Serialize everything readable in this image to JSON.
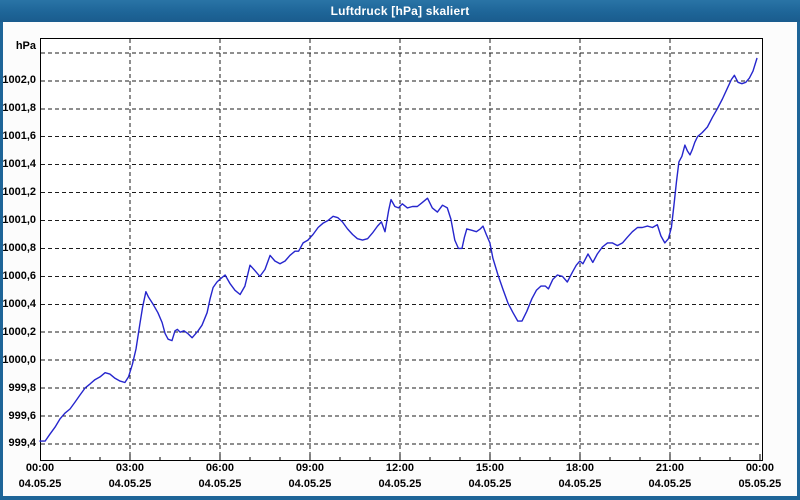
{
  "window": {
    "title": "Luftdruck [hPa] skaliert"
  },
  "colors": {
    "titlebar": "#1e6598",
    "window_border": "#1e6598",
    "plot_background": "#ffffff",
    "grid": "#1c1c1c",
    "line": "#2626cd",
    "text": "#000000",
    "title_text": "#ffffff"
  },
  "chart_data": {
    "type": "line",
    "title": "Luftdruck [hPa] skaliert",
    "y_unit": "hPa",
    "xlabel": "",
    "ylabel": "hPa",
    "grid": "dashed",
    "legend": "none",
    "ylim": [
      999.285,
      1002.307
    ],
    "xlim_hours": [
      0,
      24.07
    ],
    "y_gridlines": [
      999.4,
      999.6,
      999.8,
      1000.0,
      1000.2,
      1000.4,
      1000.6,
      1000.8,
      1001.0,
      1001.2,
      1001.4,
      1001.6,
      1001.8,
      1002.0,
      1002.2
    ],
    "y_ticks": [
      {
        "value": 1002.0,
        "label": "1002,0"
      },
      {
        "value": 1001.8,
        "label": "1001,8"
      },
      {
        "value": 1001.6,
        "label": "1001,6"
      },
      {
        "value": 1001.4,
        "label": "1001,4"
      },
      {
        "value": 1001.2,
        "label": "1001,2"
      },
      {
        "value": 1001.0,
        "label": "1001,0"
      },
      {
        "value": 1000.8,
        "label": "1000,8"
      },
      {
        "value": 1000.6,
        "label": "1000,6"
      },
      {
        "value": 1000.4,
        "label": "1000,4"
      },
      {
        "value": 1000.2,
        "label": "1000,2"
      },
      {
        "value": 1000.0,
        "label": "1000,0"
      },
      {
        "value": 999.8,
        "label": "999,8"
      },
      {
        "value": 999.6,
        "label": "999,6"
      },
      {
        "value": 999.4,
        "label": "999,4"
      }
    ],
    "x_gridline_hours": [
      3,
      6,
      9,
      12,
      15,
      18,
      21
    ],
    "x_ticks": [
      {
        "hour": 0,
        "time": "00:00",
        "date": "04.05.25"
      },
      {
        "hour": 3,
        "time": "03:00",
        "date": "04.05.25"
      },
      {
        "hour": 6,
        "time": "06:00",
        "date": "04.05.25"
      },
      {
        "hour": 9,
        "time": "09:00",
        "date": "04.05.25"
      },
      {
        "hour": 12,
        "time": "12:00",
        "date": "04.05.25"
      },
      {
        "hour": 15,
        "time": "15:00",
        "date": "04.05.25"
      },
      {
        "hour": 18,
        "time": "18:00",
        "date": "04.05.25"
      },
      {
        "hour": 21,
        "time": "21:00",
        "date": "04.05.25"
      },
      {
        "hour": 24,
        "time": "00:00",
        "date": "05.05.25"
      }
    ],
    "series": [
      {
        "name": "Luftdruck",
        "unit": "hPa",
        "points": [
          [
            0,
            999.42
          ],
          [
            0.17,
            999.42
          ],
          [
            0.33,
            999.47
          ],
          [
            0.5,
            999.52
          ],
          [
            0.67,
            999.58
          ],
          [
            0.83,
            999.62
          ],
          [
            1,
            999.65
          ],
          [
            1.17,
            999.7
          ],
          [
            1.33,
            999.75
          ],
          [
            1.5,
            999.8
          ],
          [
            1.67,
            999.83
          ],
          [
            1.83,
            999.86
          ],
          [
            2,
            999.88
          ],
          [
            2.17,
            999.91
          ],
          [
            2.33,
            999.9
          ],
          [
            2.5,
            999.87
          ],
          [
            2.67,
            999.85
          ],
          [
            2.83,
            999.84
          ],
          [
            2.95,
            999.88
          ],
          [
            3.08,
            999.97
          ],
          [
            3.2,
            1000.08
          ],
          [
            3.33,
            1000.26
          ],
          [
            3.42,
            1000.38
          ],
          [
            3.53,
            1000.49
          ],
          [
            3.62,
            1000.45
          ],
          [
            3.77,
            1000.4
          ],
          [
            3.93,
            1000.34
          ],
          [
            4.07,
            1000.27
          ],
          [
            4.17,
            1000.19
          ],
          [
            4.27,
            1000.15
          ],
          [
            4.4,
            1000.14
          ],
          [
            4.5,
            1000.21
          ],
          [
            4.58,
            1000.22
          ],
          [
            4.67,
            1000.2
          ],
          [
            4.8,
            1000.21
          ],
          [
            4.93,
            1000.19
          ],
          [
            5.07,
            1000.16
          ],
          [
            5.27,
            1000.21
          ],
          [
            5.4,
            1000.25
          ],
          [
            5.57,
            1000.34
          ],
          [
            5.67,
            1000.44
          ],
          [
            5.77,
            1000.52
          ],
          [
            5.9,
            1000.56
          ],
          [
            6,
            1000.58
          ],
          [
            6.17,
            1000.61
          ],
          [
            6.33,
            1000.55
          ],
          [
            6.5,
            1000.5
          ],
          [
            6.67,
            1000.47
          ],
          [
            6.83,
            1000.53
          ],
          [
            7,
            1000.68
          ],
          [
            7.17,
            1000.64
          ],
          [
            7.33,
            1000.6
          ],
          [
            7.5,
            1000.65
          ],
          [
            7.67,
            1000.75
          ],
          [
            7.83,
            1000.71
          ],
          [
            8,
            1000.69
          ],
          [
            8.17,
            1000.71
          ],
          [
            8.33,
            1000.75
          ],
          [
            8.5,
            1000.78
          ],
          [
            8.62,
            1000.78
          ],
          [
            8.77,
            1000.84
          ],
          [
            8.93,
            1000.86
          ],
          [
            9.1,
            1000.9
          ],
          [
            9.27,
            1000.95
          ],
          [
            9.43,
            1000.98
          ],
          [
            9.6,
            1001
          ],
          [
            9.77,
            1001.03
          ],
          [
            9.93,
            1001.02
          ],
          [
            10.08,
            1000.99
          ],
          [
            10.25,
            1000.94
          ],
          [
            10.42,
            1000.9
          ],
          [
            10.58,
            1000.87
          ],
          [
            10.75,
            1000.86
          ],
          [
            10.92,
            1000.87
          ],
          [
            11.08,
            1000.91
          ],
          [
            11.25,
            1000.96
          ],
          [
            11.38,
            1000.99
          ],
          [
            11.5,
            1000.92
          ],
          [
            11.62,
            1001.07
          ],
          [
            11.7,
            1001.15
          ],
          [
            11.83,
            1001.1
          ],
          [
            11.95,
            1001.09
          ],
          [
            12.08,
            1001.12
          ],
          [
            12.25,
            1001.09
          ],
          [
            12.42,
            1001.1
          ],
          [
            12.58,
            1001.1
          ],
          [
            12.75,
            1001.13
          ],
          [
            12.92,
            1001.16
          ],
          [
            13.08,
            1001.09
          ],
          [
            13.25,
            1001.06
          ],
          [
            13.42,
            1001.11
          ],
          [
            13.58,
            1001.09
          ],
          [
            13.7,
            1001.01
          ],
          [
            13.83,
            1000.86
          ],
          [
            13.95,
            1000.8
          ],
          [
            14.07,
            1000.8
          ],
          [
            14.15,
            1000.88
          ],
          [
            14.23,
            1000.94
          ],
          [
            14.4,
            1000.93
          ],
          [
            14.55,
            1000.92
          ],
          [
            14.68,
            1000.94
          ],
          [
            14.77,
            1000.96
          ],
          [
            14.88,
            1000.9
          ],
          [
            15,
            1000.84
          ],
          [
            15.1,
            1000.73
          ],
          [
            15.27,
            1000.61
          ],
          [
            15.43,
            1000.51
          ],
          [
            15.6,
            1000.41
          ],
          [
            15.77,
            1000.34
          ],
          [
            15.93,
            1000.28
          ],
          [
            16.07,
            1000.28
          ],
          [
            16.23,
            1000.35
          ],
          [
            16.4,
            1000.44
          ],
          [
            16.55,
            1000.5
          ],
          [
            16.7,
            1000.53
          ],
          [
            16.85,
            1000.53
          ],
          [
            16.95,
            1000.51
          ],
          [
            17.1,
            1000.58
          ],
          [
            17.25,
            1000.61
          ],
          [
            17.42,
            1000.6
          ],
          [
            17.58,
            1000.56
          ],
          [
            17.75,
            1000.63
          ],
          [
            17.88,
            1000.68
          ],
          [
            18,
            1000.71
          ],
          [
            18.1,
            1000.69
          ],
          [
            18.27,
            1000.76
          ],
          [
            18.43,
            1000.7
          ],
          [
            18.58,
            1000.76
          ],
          [
            18.75,
            1000.81
          ],
          [
            18.92,
            1000.84
          ],
          [
            19.08,
            1000.84
          ],
          [
            19.25,
            1000.82
          ],
          [
            19.42,
            1000.84
          ],
          [
            19.58,
            1000.88
          ],
          [
            19.75,
            1000.92
          ],
          [
            19.92,
            1000.95
          ],
          [
            20.08,
            1000.95
          ],
          [
            20.25,
            1000.96
          ],
          [
            20.42,
            1000.95
          ],
          [
            20.58,
            1000.97
          ],
          [
            20.7,
            1000.89
          ],
          [
            20.83,
            1000.84
          ],
          [
            20.95,
            1000.87
          ],
          [
            21.05,
            1000.95
          ],
          [
            21.13,
            1001.1
          ],
          [
            21.22,
            1001.28
          ],
          [
            21.3,
            1001.42
          ],
          [
            21.4,
            1001.46
          ],
          [
            21.5,
            1001.54
          ],
          [
            21.58,
            1001.5
          ],
          [
            21.67,
            1001.47
          ],
          [
            21.75,
            1001.51
          ],
          [
            21.83,
            1001.56
          ],
          [
            21.92,
            1001.6
          ],
          [
            22.08,
            1001.63
          ],
          [
            22.25,
            1001.67
          ],
          [
            22.42,
            1001.74
          ],
          [
            22.58,
            1001.8
          ],
          [
            22.75,
            1001.87
          ],
          [
            22.92,
            1001.95
          ],
          [
            23.05,
            1002.01
          ],
          [
            23.15,
            1002.04
          ],
          [
            23.27,
            1001.99
          ],
          [
            23.4,
            1001.98
          ],
          [
            23.53,
            1001.99
          ],
          [
            23.65,
            1002.02
          ],
          [
            23.77,
            1002.07
          ],
          [
            23.9,
            1002.16
          ]
        ]
      }
    ]
  }
}
